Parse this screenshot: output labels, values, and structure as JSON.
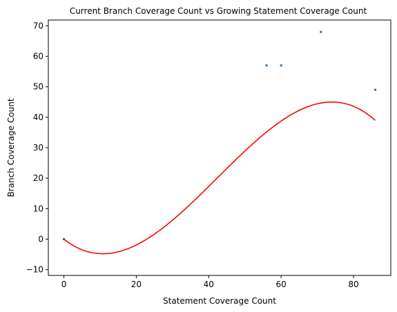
{
  "chart_data": {
    "type": "scatter",
    "title": "Current Branch Coverage Count vs Growing Statement Coverage Count",
    "xlabel": "Statement Coverage Count",
    "ylabel": "Branch Coverage Count",
    "xlim": [
      -4.3,
      90.3
    ],
    "ylim": [
      -11.9,
      71.9
    ],
    "x_ticks": [
      0,
      20,
      40,
      60,
      80
    ],
    "y_ticks": [
      -10,
      0,
      10,
      20,
      30,
      40,
      50,
      60,
      70
    ],
    "grid": false,
    "points": {
      "x": [
        0,
        56,
        60,
        71,
        86
      ],
      "y": [
        0,
        57,
        57,
        68,
        49
      ],
      "color": "#1f77b4"
    },
    "fit_curve": {
      "type": "polynomial",
      "degree": 3,
      "coefficients_high_to_low": [
        -0.000393,
        0.049975,
        -0.938,
        0.0
      ],
      "x_range": [
        0,
        86
      ],
      "color": "#ff0000"
    }
  }
}
